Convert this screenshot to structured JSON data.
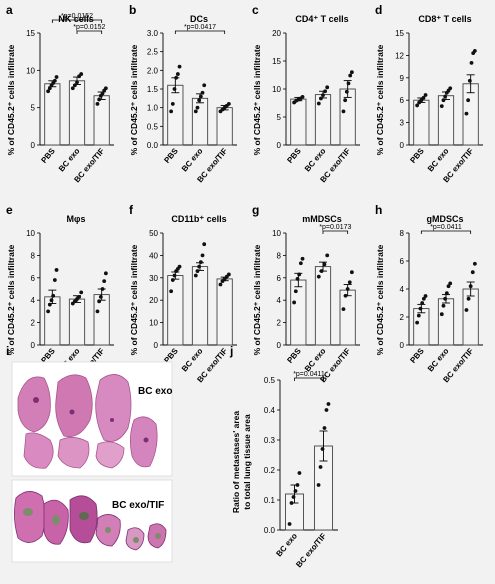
{
  "figure": {
    "panels": [
      {
        "letter": "a",
        "title": "NK cells",
        "ylabel": "% of CD45.2⁺ cells infiltrate",
        "ylim": [
          0,
          15
        ],
        "ticks": [
          0,
          5,
          10,
          15
        ],
        "categories": [
          "PBS",
          "BC exo",
          "BC exo/TIF"
        ],
        "means": [
          8.2,
          8.6,
          6.6
        ],
        "sems": [
          0.4,
          0.5,
          0.5
        ],
        "points": [
          [
            7.2,
            7.6,
            8.0,
            8.3,
            8.6,
            9.1
          ],
          [
            7.6,
            8.0,
            8.4,
            9.2,
            9.5
          ],
          [
            5.5,
            6.1,
            6.6,
            6.9,
            7.3,
            7.6
          ]
        ],
        "annotations": [
          {
            "text": "*p=0.0152",
            "from": 0,
            "to": 2,
            "level": 2
          },
          {
            "text": "*p=0.0152",
            "from": 1,
            "to": 2,
            "level": 1
          }
        ]
      },
      {
        "letter": "b",
        "title": "DCs",
        "ylabel": "% of CD45.2⁺ cells infiltrate",
        "ylim": [
          0,
          3.0
        ],
        "ticks": [
          0.0,
          0.5,
          1.0,
          1.5,
          2.0,
          2.5,
          3.0
        ],
        "tick_decimals": 1,
        "categories": [
          "PBS",
          "BC exo",
          "BC exo/TIF"
        ],
        "means": [
          1.6,
          1.25,
          1.0
        ],
        "sems": [
          0.2,
          0.12,
          0.06
        ],
        "points": [
          [
            0.9,
            1.1,
            1.5,
            1.8,
            1.9,
            2.1
          ],
          [
            0.9,
            1.0,
            1.2,
            1.3,
            1.4,
            1.6
          ],
          [
            0.9,
            0.95,
            1.0,
            1.05,
            1.1
          ]
        ],
        "annotations": [
          {
            "text": "*p=0.0417",
            "from": 0,
            "to": 2,
            "level": 1
          }
        ]
      },
      {
        "letter": "c",
        "title": "CD4⁺ T cells",
        "ylabel": "% of CD45.2⁺ cells infiltrate",
        "ylim": [
          0,
          20
        ],
        "ticks": [
          0,
          5,
          10,
          15,
          20
        ],
        "categories": [
          "PBS",
          "BC exo",
          "BC exo/TIF"
        ],
        "means": [
          8.2,
          9.0,
          10.0
        ],
        "sems": [
          0.3,
          0.6,
          1.5
        ],
        "points": [
          [
            7.6,
            7.9,
            8.1,
            8.3,
            8.6
          ],
          [
            7.4,
            8.3,
            8.9,
            9.6,
            10.3
          ],
          [
            6.0,
            8.0,
            9.5,
            11.0,
            12.4,
            13.0
          ]
        ],
        "annotations": []
      },
      {
        "letter": "d",
        "title": "CD8⁺ T cells",
        "ylabel": "% of CD45.2⁺ cells infiltrate",
        "ylim": [
          0,
          15
        ],
        "ticks": [
          0,
          3,
          6,
          9,
          12,
          15
        ],
        "categories": [
          "PBS",
          "BC exo",
          "BC exo/TIF"
        ],
        "means": [
          6.0,
          6.6,
          8.2
        ],
        "sems": [
          0.3,
          0.5,
          1.2
        ],
        "points": [
          [
            5.3,
            5.7,
            6.0,
            6.3,
            6.7
          ],
          [
            5.2,
            6.0,
            6.5,
            7.0,
            7.3,
            7.6
          ],
          [
            4.2,
            6.0,
            8.6,
            11.0,
            12.3,
            12.6
          ]
        ],
        "annotations": []
      },
      {
        "letter": "e",
        "title": "Mφs",
        "ylabel": "% of CD45.2⁺ cells infiltrate",
        "ylim": [
          0,
          10
        ],
        "ticks": [
          0,
          2,
          4,
          6,
          8,
          10
        ],
        "categories": [
          "PBS",
          "BC exo",
          "BC exo/TIF"
        ],
        "means": [
          4.3,
          4.1,
          4.5
        ],
        "sems": [
          0.6,
          0.3,
          0.5
        ],
        "points": [
          [
            3.0,
            3.6,
            4.0,
            4.4,
            5.8,
            6.7
          ],
          [
            3.7,
            3.9,
            4.1,
            4.3,
            4.7
          ],
          [
            3.0,
            3.9,
            4.3,
            5.0,
            5.7,
            6.4
          ]
        ],
        "annotations": []
      },
      {
        "letter": "f",
        "title": "CD11b⁺ cells",
        "ylabel": "% of CD45.2⁺ cells infiltrate",
        "ylim": [
          0,
          50
        ],
        "ticks": [
          0,
          10,
          20,
          30,
          40,
          50
        ],
        "categories": [
          "PBS",
          "BC exo",
          "BC exo/TIF"
        ],
        "means": [
          31,
          35,
          29.5
        ],
        "sems": [
          1.6,
          1.7,
          0.8
        ],
        "points": [
          [
            24,
            29,
            31,
            33,
            34,
            35
          ],
          [
            31,
            33,
            35,
            37,
            40,
            45
          ],
          [
            27,
            28.5,
            29.5,
            30.5,
            31.5
          ]
        ],
        "annotations": []
      },
      {
        "letter": "g",
        "title": "mMDSCs",
        "ylabel": "% of CD45.2⁺ cells infiltrate",
        "ylim": [
          0,
          10
        ],
        "ticks": [
          0,
          2,
          4,
          6,
          8,
          10
        ],
        "categories": [
          "PBS",
          "BC exo",
          "BC exo/TIF"
        ],
        "means": [
          5.8,
          7.0,
          4.9
        ],
        "sems": [
          0.6,
          0.4,
          0.5
        ],
        "points": [
          [
            3.8,
            4.8,
            5.9,
            6.3,
            7.3,
            7.7
          ],
          [
            6.1,
            6.6,
            7.2,
            8.0
          ],
          [
            3.2,
            4.4,
            5.0,
            5.6,
            6.5
          ]
        ],
        "annotations": [
          {
            "text": "*p=0.0173",
            "from": 1,
            "to": 2,
            "level": 1
          }
        ]
      },
      {
        "letter": "h",
        "title": "gMDSCs",
        "ylabel": "% of CD45.2⁺ cells infiltrate",
        "ylim": [
          0,
          8
        ],
        "ticks": [
          0,
          2,
          4,
          6,
          8
        ],
        "categories": [
          "PBS",
          "BC exo",
          "BC exo/TIF"
        ],
        "means": [
          2.6,
          3.3,
          4.0
        ],
        "sems": [
          0.3,
          0.3,
          0.5
        ],
        "points": [
          [
            1.6,
            2.1,
            2.6,
            3.0,
            3.3,
            3.5
          ],
          [
            2.2,
            2.8,
            3.3,
            3.7,
            4.2,
            4.4
          ],
          [
            2.5,
            3.3,
            4.2,
            5.2,
            5.8
          ]
        ],
        "annotations": [
          {
            "text": "*p=0.0411",
            "from": 0,
            "to": 2,
            "level": 1
          }
        ]
      }
    ],
    "panel_i": {
      "letter": "i",
      "label_top": "BC exo",
      "label_bottom": "BC exo/TIF"
    },
    "panel_j": {
      "letter": "j",
      "ylabel_line1": "Ratio of metastases' area",
      "ylabel_line2": "to total lung tissue area",
      "ylim": [
        0,
        0.5
      ],
      "ticks": [
        0.0,
        0.1,
        0.2,
        0.3,
        0.4,
        0.5
      ],
      "tick_decimals": 1,
      "categories": [
        "BC exo",
        "BC exo/TIF"
      ],
      "means": [
        0.12,
        0.28
      ],
      "sems": [
        0.03,
        0.05
      ],
      "points": [
        [
          0.02,
          0.09,
          0.11,
          0.13,
          0.15,
          0.19
        ],
        [
          0.15,
          0.21,
          0.27,
          0.34,
          0.4,
          0.42
        ]
      ],
      "annotations": [
        {
          "text": "*p=0.0411",
          "from": 0,
          "to": 1,
          "level": 1
        }
      ]
    }
  },
  "colors": {
    "bar_fill": "#f4f4f4",
    "bar_stroke": "#444444",
    "dot": "#111111",
    "background": "#f2f2f2",
    "tissue_pink": "#d27fb7",
    "tissue_purple": "#7c2f73",
    "tissue_green": "#7d8c6a"
  }
}
